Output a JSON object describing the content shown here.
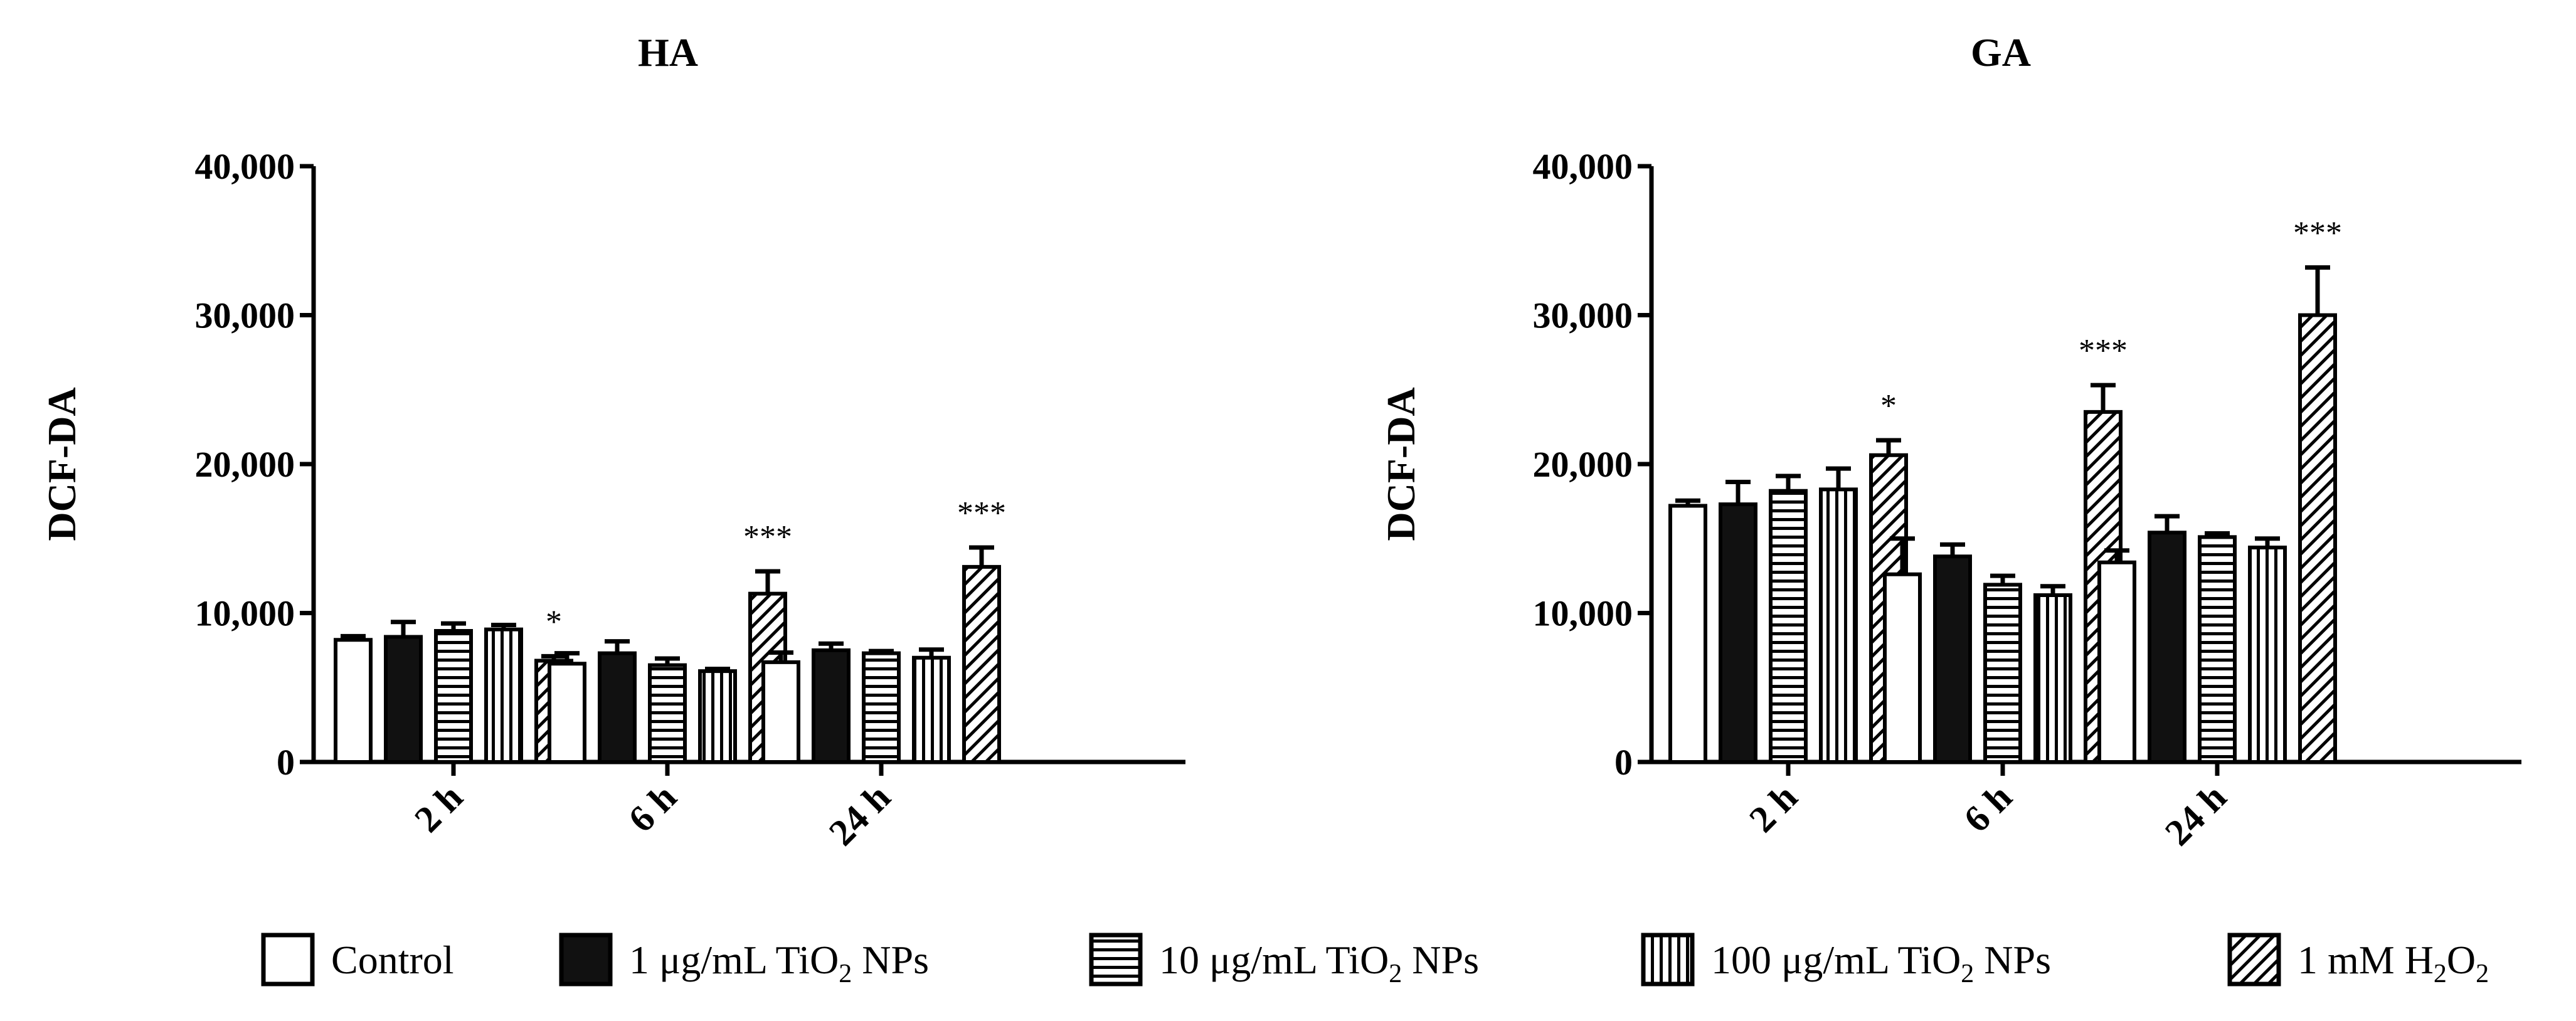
{
  "chart_data": [
    {
      "type": "bar",
      "title": "HA",
      "ylabel": "DCF-DA",
      "xlabel": "",
      "ylim": [
        0,
        40000
      ],
      "yticks": [
        "0",
        "10,000",
        "20,000",
        "30,000",
        "40,000"
      ],
      "categories": [
        "2 h",
        "6 h",
        "24 h"
      ],
      "series": [
        {
          "name": "Control",
          "values": [
            8200,
            6600,
            6700
          ],
          "errors": [
            250,
            700,
            650
          ]
        },
        {
          "name": "1 μg/mL TiO2 NPs",
          "values": [
            8400,
            7300,
            7500
          ],
          "errors": [
            1000,
            800,
            450
          ]
        },
        {
          "name": "10 μg/mL TiO2 NPs",
          "values": [
            8800,
            6500,
            7300
          ],
          "errors": [
            500,
            450,
            150
          ]
        },
        {
          "name": "100 μg/mL TiO2 NPs",
          "values": [
            8900,
            6100,
            7000
          ],
          "errors": [
            300,
            150,
            550
          ]
        },
        {
          "name": "1 mM H2O2",
          "values": [
            6800,
            11300,
            13100
          ],
          "errors": [
            300,
            1500,
            1300
          ]
        }
      ],
      "annotations": [
        {
          "category": "2 h",
          "series": "1 mM H2O2",
          "text": "*"
        },
        {
          "category": "6 h",
          "series": "1 mM H2O2",
          "text": "***"
        },
        {
          "category": "24 h",
          "series": "1 mM H2O2",
          "text": "***"
        }
      ]
    },
    {
      "type": "bar",
      "title": "GA",
      "ylabel": "DCF-DA",
      "xlabel": "",
      "ylim": [
        0,
        40000
      ],
      "yticks": [
        "0",
        "10,000",
        "20,000",
        "30,000",
        "40,000"
      ],
      "categories": [
        "2 h",
        "6 h",
        "24 h"
      ],
      "series": [
        {
          "name": "Control",
          "values": [
            17200,
            12600,
            13400
          ],
          "errors": [
            350,
            2400,
            800
          ]
        },
        {
          "name": "1 μg/mL TiO2 NPs",
          "values": [
            17300,
            13800,
            15400
          ],
          "errors": [
            1500,
            800,
            1100
          ]
        },
        {
          "name": "10 μg/mL TiO2 NPs",
          "values": [
            18200,
            11900,
            15100
          ],
          "errors": [
            1000,
            600,
            250
          ]
        },
        {
          "name": "100 μg/mL TiO2 NPs",
          "values": [
            18300,
            11200,
            14400
          ],
          "errors": [
            1400,
            600,
            600
          ]
        },
        {
          "name": "1 mM H2O2",
          "values": [
            20600,
            23500,
            30000
          ],
          "errors": [
            1000,
            1800,
            3200
          ]
        }
      ],
      "annotations": [
        {
          "category": "2 h",
          "series": "1 mM H2O2",
          "text": "*"
        },
        {
          "category": "6 h",
          "series": "1 mM H2O2",
          "text": "***"
        },
        {
          "category": "24 h",
          "series": "1 mM H2O2",
          "text": "***"
        }
      ]
    }
  ],
  "legend": [
    {
      "pattern": "empty",
      "text_main": "Control",
      "sub": "",
      "text_after": ""
    },
    {
      "pattern": "solid",
      "text_main": "1 μg/mL TiO",
      "sub": "2",
      "text_after": " NPs"
    },
    {
      "pattern": "horizontal",
      "text_main": "10 μg/mL TiO",
      "sub": "2",
      "text_after": " NPs"
    },
    {
      "pattern": "vertical",
      "text_main": "100 μg/mL TiO",
      "sub": "2",
      "text_after": " NPs"
    },
    {
      "pattern": "diagonal",
      "text_main": "1 mM H",
      "sub": "2",
      "text_after": "O2"
    }
  ],
  "legend_tail": {
    "h2o2_o": "O",
    "h2o2_sub": "2"
  },
  "colors": {
    "ink": "#000000",
    "background": "#ffffff"
  }
}
